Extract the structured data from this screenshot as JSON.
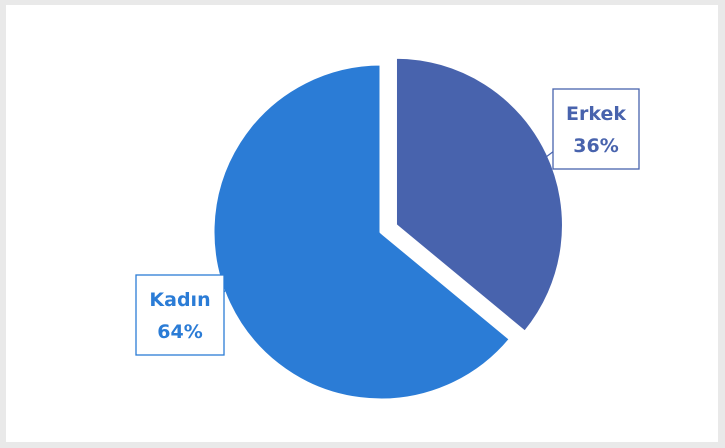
{
  "chart_data": {
    "type": "pie",
    "title": "",
    "categories": [
      "Erkek",
      "Kadın"
    ],
    "values": [
      36,
      64
    ],
    "slices": [
      {
        "label": "Erkek",
        "value": 36,
        "value_label": "36%",
        "color": "#4863ad",
        "exploded": true
      },
      {
        "label": "Kadın",
        "value": 64,
        "value_label": "64%",
        "color": "#2b7cd6",
        "exploded": false
      }
    ],
    "legend": "none",
    "data_labels": "callout"
  }
}
